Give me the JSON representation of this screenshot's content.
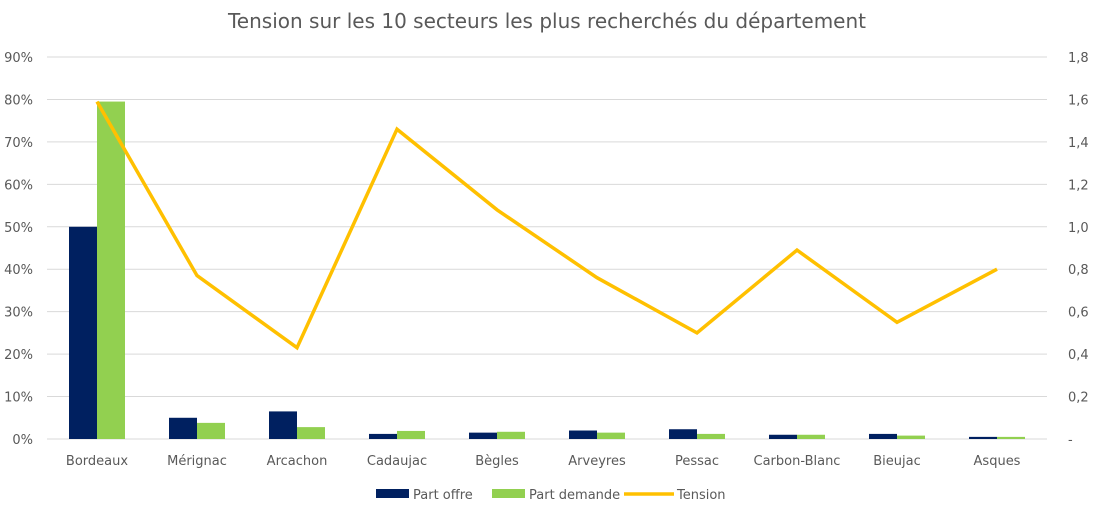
{
  "chart_data": {
    "type": "bar",
    "title": "Tension sur les 10 secteurs les plus recherchés du département",
    "categories": [
      "Bordeaux",
      "Mérignac",
      "Arcachon",
      "Cadaujac",
      "Bègles",
      "Arveyres",
      "Pessac",
      "Carbon-Blanc",
      "Bieujac",
      "Asques"
    ],
    "series": [
      {
        "name": "Part offre",
        "type": "bar",
        "axis": "left",
        "color": "#002060",
        "values": [
          50,
          5,
          6.5,
          1.2,
          1.5,
          2,
          2.3,
          1,
          1.2,
          0.5
        ]
      },
      {
        "name": "Part demande",
        "type": "bar",
        "axis": "left",
        "color": "#92D050",
        "values": [
          79.5,
          3.8,
          2.8,
          1.9,
          1.7,
          1.5,
          1.2,
          1,
          0.8,
          0.5
        ]
      },
      {
        "name": "Tension",
        "type": "line",
        "axis": "right",
        "color": "#FFC000",
        "values": [
          1.59,
          0.77,
          0.43,
          1.46,
          1.08,
          0.76,
          0.5,
          0.89,
          0.55,
          0.8
        ]
      }
    ],
    "y_left": {
      "ylim": [
        0,
        90
      ],
      "ticks": [
        "0%",
        "10%",
        "20%",
        "30%",
        "40%",
        "50%",
        "60%",
        "70%",
        "80%",
        "90%"
      ]
    },
    "y_right": {
      "ylim": [
        0,
        1.8
      ],
      "ticks": [
        "-",
        "0,2",
        "0,4",
        "0,6",
        "0,8",
        "1,0",
        "1,2",
        "1,4",
        "1,6",
        "1,8"
      ]
    },
    "grid": true,
    "legend": "bottom"
  }
}
